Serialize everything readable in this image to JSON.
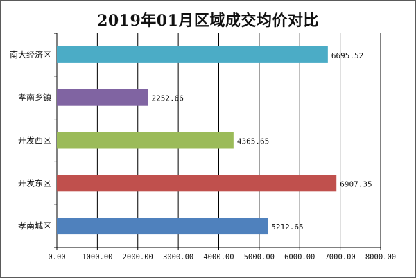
{
  "chart_data": {
    "type": "bar",
    "orientation": "horizontal",
    "title": "2019年01月区域成交均价对比",
    "categories": [
      "南大经济区",
      "孝南乡镇",
      "开发西区",
      "开发东区",
      "孝南城区"
    ],
    "values": [
      6695.52,
      2252.66,
      4365.65,
      6907.35,
      5212.65
    ],
    "value_labels": [
      "6695.52",
      "2252.66",
      "4365.65",
      "6907.35",
      "5212.65"
    ],
    "colors": [
      "#4bacc6",
      "#8064a2",
      "#9bbb59",
      "#c0504d",
      "#4f81bd"
    ],
    "xticks": [
      0,
      1000,
      2000,
      3000,
      4000,
      5000,
      6000,
      7000,
      8000
    ],
    "xtick_labels": [
      "0.00",
      "1000.00",
      "2000.00",
      "3000.00",
      "4000.00",
      "5000.00",
      "6000.00",
      "7000.00",
      "8000.00"
    ],
    "xlim": [
      0,
      8000
    ],
    "grid": true,
    "legend": "none"
  }
}
